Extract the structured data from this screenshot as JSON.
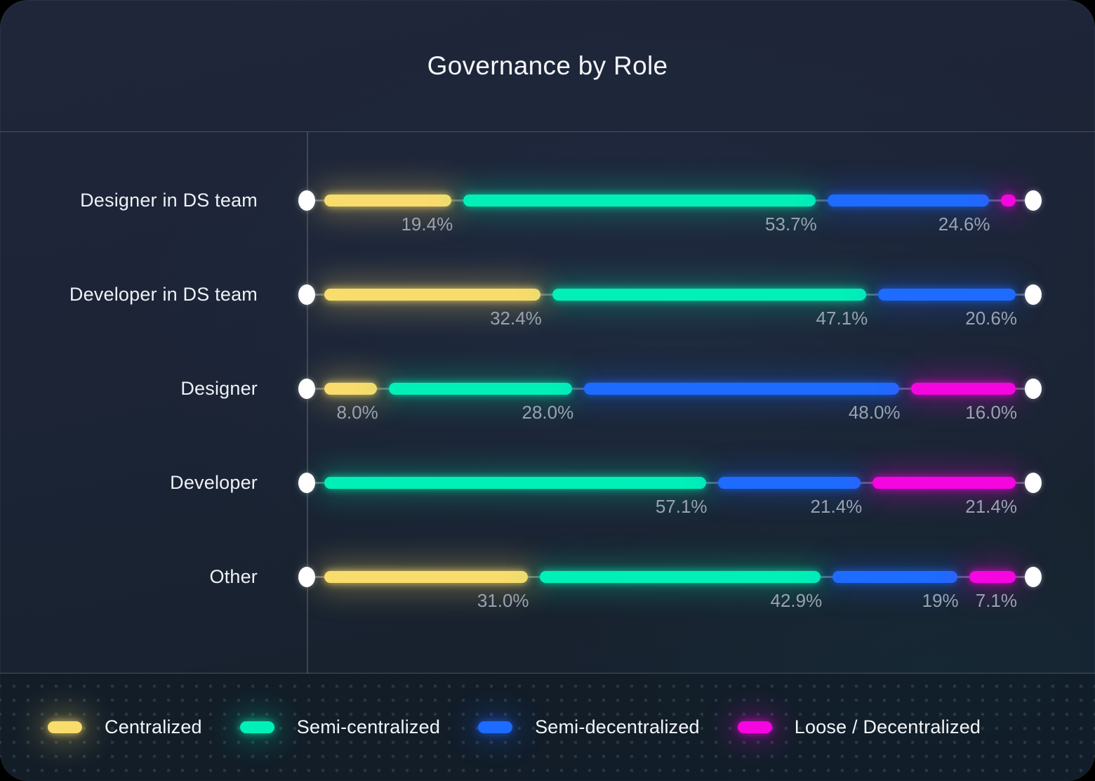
{
  "title": "Governance by Role",
  "colors": {
    "centralized": "#f8dc6c",
    "semi_centralized": "#00f0b8",
    "semi_decentralized": "#1e6bff",
    "loose_decentralized": "#f505e0",
    "card_background": "#1c2436",
    "value_label_gray": "#99a2b0",
    "endpoint_dot": "#ffffff"
  },
  "legend": [
    {
      "key": "centralized",
      "label": "Centralized"
    },
    {
      "key": "semi_centralized",
      "label": "Semi-centralized"
    },
    {
      "key": "semi_decentralized",
      "label": "Semi-decentralized"
    },
    {
      "key": "loose_decentralized",
      "label": "Loose / Decentralized"
    }
  ],
  "chart_data": {
    "type": "bar",
    "variant": "horizontal-stacked-percent-dumbbell",
    "title": "Governance by Role",
    "unit": "%",
    "xlim": [
      0,
      100
    ],
    "legend_position": "bottom",
    "categories": [
      "Designer in DS team",
      "Developer in DS team",
      "Designer",
      "Developer",
      "Other"
    ],
    "series_names": [
      "Centralized",
      "Semi-centralized",
      "Semi-decentralized",
      "Loose / Decentralized"
    ],
    "rows": [
      {
        "category": "Designer in DS team",
        "segments": [
          {
            "key": "centralized",
            "value": 19.4,
            "label": "19.4%"
          },
          {
            "key": "semi_centralized",
            "value": 53.7,
            "label": "53.7%"
          },
          {
            "key": "semi_decentralized",
            "value": 24.6,
            "label": "24.6%"
          },
          {
            "key": "loose_decentralized",
            "value": 2.3,
            "label": ""
          }
        ]
      },
      {
        "category": "Developer in DS team",
        "segments": [
          {
            "key": "centralized",
            "value": 32.4,
            "label": "32.4%"
          },
          {
            "key": "semi_centralized",
            "value": 47.1,
            "label": "47.1%"
          },
          {
            "key": "semi_decentralized",
            "value": 20.6,
            "label": "20.6%"
          }
        ]
      },
      {
        "category": "Designer",
        "segments": [
          {
            "key": "centralized",
            "value": 8.0,
            "label": "8.0%"
          },
          {
            "key": "semi_centralized",
            "value": 28.0,
            "label": "28.0%"
          },
          {
            "key": "semi_decentralized",
            "value": 48.0,
            "label": "48.0%"
          },
          {
            "key": "loose_decentralized",
            "value": 16.0,
            "label": "16.0%"
          }
        ]
      },
      {
        "category": "Developer",
        "segments": [
          {
            "key": "semi_centralized",
            "value": 57.1,
            "label": "57.1%"
          },
          {
            "key": "semi_decentralized",
            "value": 21.4,
            "label": "21.4%"
          },
          {
            "key": "loose_decentralized",
            "value": 21.4,
            "label": "21.4%"
          }
        ]
      },
      {
        "category": "Other",
        "segments": [
          {
            "key": "centralized",
            "value": 31.0,
            "label": "31.0%"
          },
          {
            "key": "semi_centralized",
            "value": 42.9,
            "label": "42.9%"
          },
          {
            "key": "semi_decentralized",
            "value": 19.0,
            "label": "19%"
          },
          {
            "key": "loose_decentralized",
            "value": 7.1,
            "label": "7.1%"
          }
        ]
      }
    ]
  }
}
